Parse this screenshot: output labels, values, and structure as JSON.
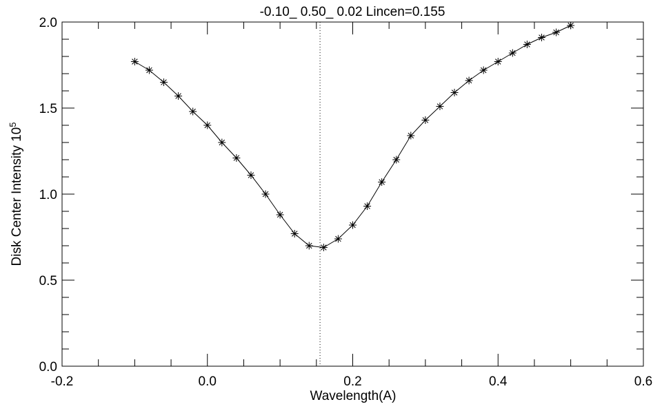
{
  "window": {
    "background_color": "#ffffff",
    "foreground_color": "#000000"
  },
  "chart_data": {
    "type": "line",
    "title": "-0.10_ 0.50_ 0.02  Lincen=0.155",
    "xlabel": "Wavelength(A)",
    "ylabel": "Disk Center Intensity 10",
    "ylabel_exponent": "5",
    "xlim": [
      -0.2,
      0.6
    ],
    "ylim": [
      0.0,
      2.0
    ],
    "x_major_ticks": [
      -0.2,
      0.0,
      0.2,
      0.4,
      0.6
    ],
    "x_tick_labels": [
      "-0.2",
      "0.0",
      "0.2",
      "0.4",
      "0.6"
    ],
    "x_minor_step": 0.05,
    "y_major_ticks": [
      0.0,
      0.5,
      1.0,
      1.5,
      2.0
    ],
    "y_tick_labels": [
      "0.0",
      "0.5",
      "1.0",
      "1.5",
      "2.0"
    ],
    "y_minor_step": 0.1,
    "grid": false,
    "legend": null,
    "marker": "asterisk",
    "line_color": "#000000",
    "line_center": {
      "x": 0.155,
      "label": "Lincen=0.155",
      "style": "dotted-vertical"
    },
    "series": [
      {
        "name": "disk-center-intensity-profile",
        "x": [
          -0.1,
          -0.08,
          -0.06,
          -0.04,
          -0.02,
          0.0,
          0.02,
          0.04,
          0.06,
          0.08,
          0.1,
          0.12,
          0.14,
          0.16,
          0.18,
          0.2,
          0.22,
          0.24,
          0.26,
          0.28,
          0.3,
          0.32,
          0.34,
          0.36,
          0.38,
          0.4,
          0.42,
          0.44,
          0.46,
          0.48,
          0.5
        ],
        "y": [
          1.77,
          1.72,
          1.65,
          1.57,
          1.48,
          1.4,
          1.3,
          1.21,
          1.11,
          1.0,
          0.88,
          0.77,
          0.7,
          0.69,
          0.74,
          0.82,
          0.93,
          1.07,
          1.2,
          1.34,
          1.43,
          1.51,
          1.59,
          1.66,
          1.72,
          1.77,
          1.82,
          1.87,
          1.91,
          1.94,
          1.98
        ]
      }
    ]
  }
}
